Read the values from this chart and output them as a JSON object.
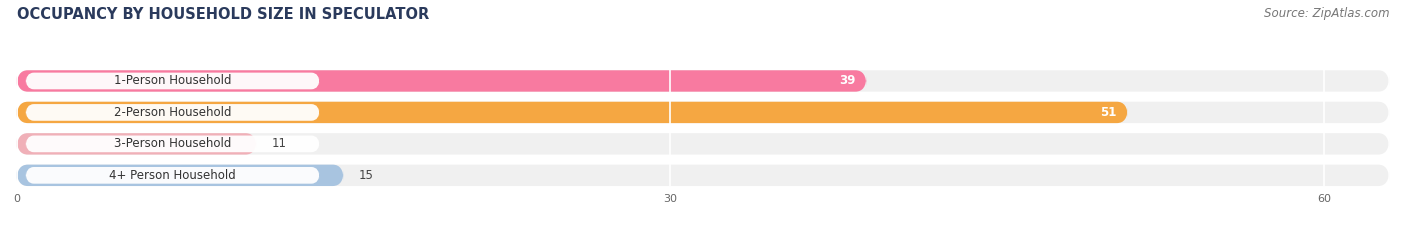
{
  "title": "OCCUPANCY BY HOUSEHOLD SIZE IN SPECULATOR",
  "source": "Source: ZipAtlas.com",
  "categories": [
    "1-Person Household",
    "2-Person Household",
    "3-Person Household",
    "4+ Person Household"
  ],
  "values": [
    39,
    51,
    11,
    15
  ],
  "bar_colors": [
    "#f87aa0",
    "#f5a742",
    "#f0b0b8",
    "#a8c4e0"
  ],
  "xlim": [
    0,
    63
  ],
  "xticks": [
    0,
    30,
    60
  ],
  "background_color": "#ffffff",
  "row_bg_color": "#f0f0f0",
  "title_fontsize": 10.5,
  "source_fontsize": 8.5,
  "label_fontsize": 8.5,
  "value_fontsize": 8.5,
  "title_color": "#2a3a5c",
  "label_color": "#333333",
  "source_color": "#777777"
}
